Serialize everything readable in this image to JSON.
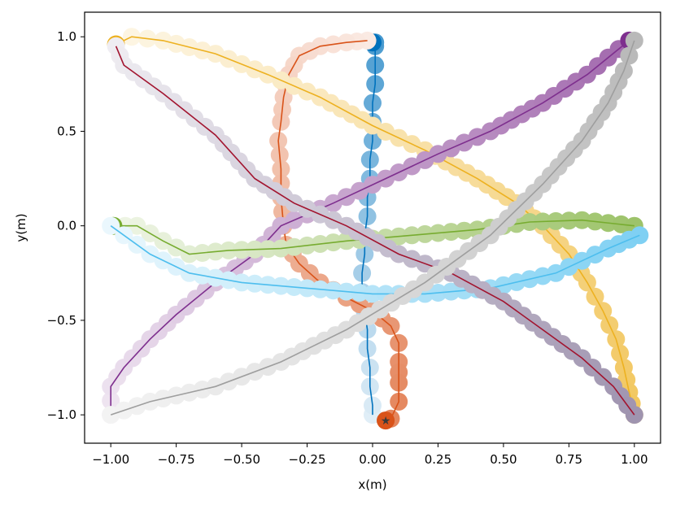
{
  "chart_data": {
    "type": "line",
    "xlabel": "x(m)",
    "ylabel": "y(m)",
    "xlim": [
      -1.1,
      1.1
    ],
    "ylim": [
      -1.15,
      1.13
    ],
    "xticks": [
      -1.0,
      -0.75,
      -0.5,
      -0.25,
      0.0,
      0.25,
      0.5,
      0.75,
      1.0
    ],
    "xtick_labels": [
      "−1.00",
      "−0.75",
      "−0.50",
      "−0.25",
      "0.00",
      "0.25",
      "0.50",
      "0.75",
      "1.00"
    ],
    "yticks": [
      -1.0,
      -0.5,
      0.0,
      0.5,
      1.0
    ],
    "ytick_labels": [
      "−1.0",
      "−0.5",
      "0.0",
      "0.5",
      "1.0"
    ],
    "grid": false,
    "legend": false,
    "series": [
      {
        "color": "#0072bd",
        "points": [
          [
            0.0,
            -1.0
          ],
          [
            0.0,
            -0.95
          ],
          [
            -0.01,
            -0.85
          ],
          [
            -0.01,
            -0.75
          ],
          [
            -0.02,
            -0.65
          ],
          [
            -0.02,
            -0.55
          ],
          [
            -0.03,
            -0.45
          ],
          [
            -0.04,
            -0.35
          ],
          [
            -0.04,
            -0.25
          ],
          [
            -0.03,
            -0.15
          ],
          [
            -0.03,
            -0.05
          ],
          [
            -0.02,
            0.05
          ],
          [
            -0.02,
            0.15
          ],
          [
            -0.01,
            0.25
          ],
          [
            -0.01,
            0.35
          ],
          [
            0.0,
            0.45
          ],
          [
            0.0,
            0.55
          ],
          [
            0.0,
            0.65
          ],
          [
            0.01,
            0.75
          ],
          [
            0.01,
            0.85
          ],
          [
            0.01,
            0.95
          ],
          [
            0.01,
            0.97
          ]
        ],
        "end": [
          0.0,
          0.97
        ]
      },
      {
        "color": "#d95319",
        "points": [
          [
            -0.02,
            0.98
          ],
          [
            -0.1,
            0.97
          ],
          [
            -0.2,
            0.95
          ],
          [
            -0.28,
            0.9
          ],
          [
            -0.32,
            0.8
          ],
          [
            -0.34,
            0.68
          ],
          [
            -0.35,
            0.55
          ],
          [
            -0.36,
            0.45
          ],
          [
            -0.35,
            0.3
          ],
          [
            -0.35,
            0.15
          ],
          [
            -0.34,
            0.0
          ],
          [
            -0.33,
            -0.1
          ],
          [
            -0.28,
            -0.2
          ],
          [
            -0.2,
            -0.3
          ],
          [
            -0.1,
            -0.38
          ],
          [
            0.0,
            -0.45
          ],
          [
            0.07,
            -0.53
          ],
          [
            0.1,
            -0.62
          ],
          [
            0.1,
            -0.72
          ],
          [
            0.1,
            -0.83
          ],
          [
            0.1,
            -0.93
          ],
          [
            0.07,
            -1.02
          ],
          [
            0.05,
            -1.03
          ]
        ],
        "end": [
          0.05,
          -1.03
        ]
      },
      {
        "color": "#edb120",
        "points": [
          [
            -0.98,
            0.96
          ],
          [
            -0.92,
            1.0
          ],
          [
            -0.8,
            0.98
          ],
          [
            -0.6,
            0.91
          ],
          [
            -0.4,
            0.8
          ],
          [
            -0.2,
            0.68
          ],
          [
            0.0,
            0.53
          ],
          [
            0.2,
            0.4
          ],
          [
            0.4,
            0.25
          ],
          [
            0.55,
            0.12
          ],
          [
            0.65,
            0.0
          ],
          [
            0.75,
            -0.15
          ],
          [
            0.82,
            -0.3
          ],
          [
            0.88,
            -0.45
          ],
          [
            0.93,
            -0.6
          ],
          [
            0.96,
            -0.75
          ],
          [
            0.98,
            -0.88
          ],
          [
            1.0,
            -1.0
          ]
        ],
        "end": [
          -0.98,
          0.96
        ]
      },
      {
        "color": "#7e2f8e",
        "points": [
          [
            -1.0,
            -1.0
          ],
          [
            -1.0,
            -0.85
          ],
          [
            -0.95,
            -0.75
          ],
          [
            -0.85,
            -0.6
          ],
          [
            -0.75,
            -0.47
          ],
          [
            -0.6,
            -0.3
          ],
          [
            -0.45,
            -0.15
          ],
          [
            -0.35,
            0.0
          ],
          [
            -0.15,
            0.12
          ],
          [
            0.05,
            0.25
          ],
          [
            0.25,
            0.38
          ],
          [
            0.45,
            0.5
          ],
          [
            0.65,
            0.65
          ],
          [
            0.82,
            0.8
          ],
          [
            0.98,
            0.98
          ]
        ],
        "end": [
          0.98,
          0.98
        ]
      },
      {
        "color": "#77ac30",
        "points": [
          [
            -0.99,
            0.0
          ],
          [
            -0.9,
            0.0
          ],
          [
            -0.8,
            -0.08
          ],
          [
            -0.7,
            -0.15
          ],
          [
            -0.55,
            -0.13
          ],
          [
            -0.35,
            -0.12
          ],
          [
            -0.1,
            -0.08
          ],
          [
            0.15,
            -0.05
          ],
          [
            0.4,
            -0.02
          ],
          [
            0.6,
            0.02
          ],
          [
            0.8,
            0.03
          ],
          [
            1.0,
            0.0
          ]
        ],
        "end": [
          -0.99,
          0.0
        ]
      },
      {
        "color": "#4dbeee",
        "points": [
          [
            -1.0,
            0.0
          ],
          [
            -0.95,
            -0.05
          ],
          [
            -0.85,
            -0.15
          ],
          [
            -0.7,
            -0.25
          ],
          [
            -0.5,
            -0.3
          ],
          [
            -0.25,
            -0.33
          ],
          [
            0.0,
            -0.36
          ],
          [
            0.2,
            -0.36
          ],
          [
            0.45,
            -0.33
          ],
          [
            0.7,
            -0.25
          ],
          [
            0.9,
            -0.12
          ],
          [
            1.02,
            -0.05
          ]
        ],
        "end": null
      },
      {
        "color": "#a2142f",
        "blend": "#7a6a90",
        "points": [
          [
            -0.98,
            0.95
          ],
          [
            -0.95,
            0.85
          ],
          [
            -0.8,
            0.7
          ],
          [
            -0.6,
            0.48
          ],
          [
            -0.45,
            0.25
          ],
          [
            -0.3,
            0.12
          ],
          [
            -0.1,
            0.0
          ],
          [
            0.1,
            -0.15
          ],
          [
            0.3,
            -0.25
          ],
          [
            0.5,
            -0.4
          ],
          [
            0.65,
            -0.55
          ],
          [
            0.8,
            -0.7
          ],
          [
            0.92,
            -0.85
          ],
          [
            1.0,
            -1.0
          ]
        ],
        "end": null
      },
      {
        "color": "#9e9e9e",
        "points": [
          [
            -1.0,
            -1.0
          ],
          [
            -0.85,
            -0.93
          ],
          [
            -0.6,
            -0.85
          ],
          [
            -0.35,
            -0.72
          ],
          [
            -0.1,
            -0.55
          ],
          [
            0.2,
            -0.3
          ],
          [
            0.45,
            -0.05
          ],
          [
            0.65,
            0.22
          ],
          [
            0.8,
            0.45
          ],
          [
            0.9,
            0.65
          ],
          [
            0.96,
            0.82
          ],
          [
            1.0,
            0.98
          ]
        ],
        "end": null
      }
    ]
  }
}
